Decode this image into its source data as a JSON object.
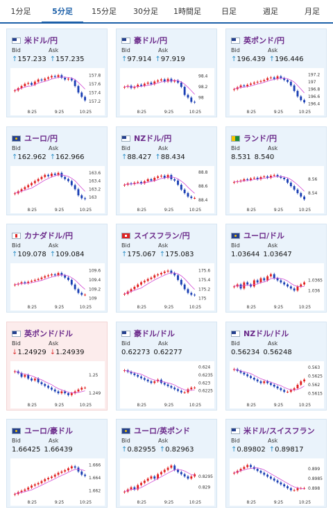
{
  "tabs": [
    {
      "label": "1分足",
      "active": false
    },
    {
      "label": "5分足",
      "active": true
    },
    {
      "label": "15分足",
      "active": false
    },
    {
      "label": "30分足",
      "active": false
    },
    {
      "label": "1時間足",
      "active": false
    },
    {
      "label": "日足",
      "active": false
    },
    {
      "label": "週足",
      "active": false
    },
    {
      "label": "月足",
      "active": false
    }
  ],
  "labels": {
    "bid": "Bid",
    "ask": "Ask"
  },
  "colors": {
    "up_candle": "#e02020",
    "down_candle": "#1a3fb4",
    "ma_line": "#d24ad4",
    "trend_line": "#2a8ec6",
    "link": "#6b2a8a"
  },
  "cards": [
    {
      "pair": "米ドル/円",
      "flag": "us-icon",
      "arrow": "up",
      "bid": "157.233",
      "ask": "157.235",
      "chart_data": {
        "type": "candlestick",
        "x_ticks": [
          "8:25",
          "9:25",
          "10:25"
        ],
        "y_ticks": [
          "157.8",
          "157.6",
          "157.4",
          "157.2"
        ],
        "ylim": [
          157.1,
          157.9
        ],
        "close": [
          157.45,
          157.5,
          157.55,
          157.6,
          157.62,
          157.58,
          157.65,
          157.7,
          157.68,
          157.72,
          157.75,
          157.78,
          157.76,
          157.8,
          157.74,
          157.7,
          157.72,
          157.68,
          157.55,
          157.4,
          157.3,
          157.22
        ]
      }
    },
    {
      "pair": "豪ドル/円",
      "flag": "au-icon",
      "arrow": "up",
      "bid": "97.914",
      "ask": "97.919",
      "chart_data": {
        "type": "candlestick",
        "x_ticks": [
          "8:25",
          "9:25",
          "10:25"
        ],
        "y_ticks": [
          "98.4",
          "98.2",
          "98"
        ],
        "ylim": [
          97.85,
          98.5
        ],
        "close": [
          98.2,
          98.22,
          98.18,
          98.2,
          98.24,
          98.22,
          98.26,
          98.28,
          98.25,
          98.3,
          98.32,
          98.34,
          98.3,
          98.35,
          98.3,
          98.32,
          98.28,
          98.2,
          98.05,
          98.0,
          97.92,
          97.91
        ]
      }
    },
    {
      "pair": "英ポンド/円",
      "flag": "gb-icon",
      "arrow": "up",
      "bid": "196.439",
      "ask": "196.446",
      "chart_data": {
        "type": "candlestick",
        "x_ticks": [
          "8:25",
          "9:25",
          "10:25"
        ],
        "y_ticks": [
          "197.2",
          "197",
          "196.8",
          "196.6",
          "196.4"
        ],
        "ylim": [
          196.35,
          197.3
        ],
        "close": [
          196.8,
          196.85,
          196.9,
          196.88,
          196.92,
          196.95,
          196.98,
          197.0,
          197.02,
          197.05,
          197.1,
          197.12,
          197.08,
          197.15,
          197.1,
          197.05,
          197.0,
          196.9,
          196.75,
          196.6,
          196.5,
          196.44
        ]
      }
    },
    {
      "pair": "ユーロ/円",
      "flag": "eu-icon",
      "arrow": "up",
      "bid": "162.962",
      "ask": "162.966",
      "chart_data": {
        "type": "candlestick",
        "x_ticks": [
          "8:25",
          "9:25",
          "10:25"
        ],
        "y_ticks": [
          "163.6",
          "163.4",
          "163.2",
          "163"
        ],
        "ylim": [
          162.85,
          163.7
        ],
        "close": [
          163.1,
          163.15,
          163.2,
          163.25,
          163.3,
          163.35,
          163.4,
          163.45,
          163.5,
          163.55,
          163.52,
          163.58,
          163.55,
          163.6,
          163.5,
          163.45,
          163.4,
          163.3,
          163.2,
          163.05,
          162.98,
          162.96
        ]
      }
    },
    {
      "pair": "NZドル/円",
      "flag": "nz-icon",
      "arrow": "up",
      "bid": "88.427",
      "ask": "88.434",
      "chart_data": {
        "type": "candlestick",
        "x_ticks": [
          "8:25",
          "9:25",
          "10:25"
        ],
        "y_ticks": [
          "88.8",
          "88.6",
          "88.4"
        ],
        "ylim": [
          88.35,
          88.85
        ],
        "close": [
          88.62,
          88.64,
          88.63,
          88.65,
          88.66,
          88.64,
          88.67,
          88.7,
          88.68,
          88.72,
          88.74,
          88.75,
          88.72,
          88.76,
          88.7,
          88.68,
          88.62,
          88.55,
          88.5,
          88.45,
          88.43,
          88.43
        ]
      }
    },
    {
      "pair": "ランド/円",
      "flag": "za-icon",
      "arrow": "none",
      "bid": "8.531",
      "ask": "8.540",
      "chart_data": {
        "type": "candlestick",
        "x_ticks": [
          "8:25",
          "9:25",
          "10:25"
        ],
        "y_ticks": [
          "8.56",
          "8.54"
        ],
        "ylim": [
          8.525,
          8.575
        ],
        "close": [
          8.556,
          8.557,
          8.558,
          8.56,
          8.559,
          8.561,
          8.562,
          8.56,
          8.563,
          8.564,
          8.562,
          8.565,
          8.566,
          8.564,
          8.562,
          8.56,
          8.555,
          8.55,
          8.545,
          8.54,
          8.535,
          8.531
        ]
      }
    },
    {
      "pair": "カナダドル/円",
      "flag": "ca-icon",
      "arrow": "up",
      "bid": "109.078",
      "ask": "109.084",
      "chart_data": {
        "type": "candlestick",
        "x_ticks": [
          "8:25",
          "9:25",
          "10:25"
        ],
        "y_ticks": [
          "109.6",
          "109.4",
          "109.2",
          "109"
        ],
        "ylim": [
          108.95,
          109.7
        ],
        "close": [
          109.3,
          109.32,
          109.35,
          109.33,
          109.36,
          109.38,
          109.4,
          109.42,
          109.45,
          109.48,
          109.5,
          109.52,
          109.5,
          109.55,
          109.5,
          109.45,
          109.4,
          109.3,
          109.2,
          109.12,
          109.08,
          109.08
        ]
      }
    },
    {
      "pair": "スイスフラン/円",
      "flag": "ch-icon",
      "arrow": "up",
      "bid": "175.067",
      "ask": "175.083",
      "chart_data": {
        "type": "candlestick",
        "x_ticks": [
          "8:25",
          "9:25",
          "10:25"
        ],
        "y_ticks": [
          "175.6",
          "175.4",
          "175.2",
          "175"
        ],
        "ylim": [
          174.95,
          175.7
        ],
        "close": [
          175.1,
          175.15,
          175.2,
          175.25,
          175.3,
          175.35,
          175.38,
          175.42,
          175.45,
          175.5,
          175.52,
          175.55,
          175.58,
          175.6,
          175.55,
          175.5,
          175.4,
          175.3,
          175.2,
          175.12,
          175.08,
          175.07
        ]
      }
    },
    {
      "pair": "ユーロ/ドル",
      "flag": "eu-us-icon",
      "arrow": "none",
      "bid": "1.03644",
      "ask": "1.03647",
      "chart_data": {
        "type": "candlestick",
        "x_ticks": [
          "8:25",
          "9:25",
          "10:25"
        ],
        "y_ticks": [
          "1.0365",
          "1.036"
        ],
        "ylim": [
          1.0355,
          1.0372
        ],
        "close": [
          1.0362,
          1.0363,
          1.0361,
          1.0364,
          1.0363,
          1.0362,
          1.0365,
          1.0364,
          1.0366,
          1.0365,
          1.0367,
          1.0368,
          1.0366,
          1.0365,
          1.0364,
          1.0363,
          1.0362,
          1.0361,
          1.036,
          1.0362,
          1.0363,
          1.0364
        ]
      }
    },
    {
      "pair": "英ポンド/ドル",
      "flag": "gb-us-icon",
      "arrow": "down",
      "bid": "1.24929",
      "ask": "1.24939",
      "chart_data": {
        "type": "candlestick",
        "x_ticks": [
          "8:25",
          "9:25",
          "10:25"
        ],
        "y_ticks": [
          "1.25",
          "1.249"
        ],
        "ylim": [
          1.2487,
          1.2506
        ],
        "close": [
          1.2502,
          1.2501,
          1.2499,
          1.25,
          1.2498,
          1.2497,
          1.2498,
          1.2496,
          1.2495,
          1.2494,
          1.2493,
          1.2492,
          1.2491,
          1.249,
          1.2491,
          1.249,
          1.2489,
          1.249,
          1.2491,
          1.2492,
          1.2493,
          1.2493
        ]
      }
    },
    {
      "pair": "豪ドル/ドル",
      "flag": "au-us-icon",
      "arrow": "none",
      "bid": "0.62273",
      "ask": "0.62277",
      "chart_data": {
        "type": "candlestick",
        "x_ticks": [
          "8:25",
          "9:25",
          "10:25"
        ],
        "y_ticks": [
          "0.624",
          "0.6235",
          "0.623",
          "0.6225"
        ],
        "ylim": [
          0.622,
          0.6242
        ],
        "close": [
          0.6238,
          0.6237,
          0.6236,
          0.6235,
          0.6234,
          0.6233,
          0.6232,
          0.6231,
          0.623,
          0.6231,
          0.6232,
          0.623,
          0.6229,
          0.6228,
          0.6227,
          0.6226,
          0.6225,
          0.6224,
          0.6224,
          0.6226,
          0.6227,
          0.6227
        ]
      }
    },
    {
      "pair": "NZドル/ドル",
      "flag": "nz-us-icon",
      "arrow": "none",
      "bid": "0.56234",
      "ask": "0.56248",
      "chart_data": {
        "type": "candlestick",
        "x_ticks": [
          "8:25",
          "9:25",
          "10:25"
        ],
        "y_ticks": [
          "0.563",
          "0.5625",
          "0.562",
          "0.5615"
        ],
        "ylim": [
          0.5612,
          0.5632
        ],
        "close": [
          0.5629,
          0.5628,
          0.5627,
          0.5626,
          0.5625,
          0.5624,
          0.5623,
          0.5622,
          0.5621,
          0.5622,
          0.5621,
          0.562,
          0.5619,
          0.5618,
          0.5617,
          0.5616,
          0.5616,
          0.5617,
          0.5618,
          0.562,
          0.5622,
          0.5623
        ]
      }
    },
    {
      "pair": "ユーロ/豪ドル",
      "flag": "eu-au-icon",
      "arrow": "none",
      "bid": "1.66425",
      "ask": "1.66439",
      "chart_data": {
        "type": "candlestick",
        "x_ticks": [
          "8:25",
          "9:25",
          "10:25"
        ],
        "y_ticks": [
          "1.666",
          "1.664",
          "1.662"
        ],
        "ylim": [
          1.6612,
          1.6666
        ],
        "close": [
          1.6615,
          1.6618,
          1.662,
          1.6622,
          1.6625,
          1.6628,
          1.663,
          1.6632,
          1.6635,
          1.6638,
          1.664,
          1.6642,
          1.6645,
          1.6648,
          1.665,
          1.6652,
          1.6655,
          1.6658,
          1.6656,
          1.665,
          1.6645,
          1.6643
        ]
      }
    },
    {
      "pair": "ユーロ/英ポンド",
      "flag": "eu-gb-icon",
      "arrow": "up",
      "bid": "0.82955",
      "ask": "0.82963",
      "chart_data": {
        "type": "candlestick",
        "x_ticks": [
          "8:25",
          "9:25",
          "10:25"
        ],
        "y_ticks": [
          "0.8295",
          "0.829"
        ],
        "ylim": [
          0.8286,
          0.8302
        ],
        "close": [
          0.8288,
          0.8289,
          0.829,
          0.8289,
          0.8291,
          0.8292,
          0.8293,
          0.8294,
          0.8295,
          0.8294,
          0.8296,
          0.8297,
          0.8298,
          0.8299,
          0.83,
          0.8298,
          0.8297,
          0.8296,
          0.8295,
          0.8294,
          0.8295,
          0.8296
        ]
      }
    },
    {
      "pair": "米ドル/スイスフラン",
      "flag": "us-ch-icon",
      "arrow": "up",
      "bid": "0.89802",
      "ask": "0.89817",
      "chart_data": {
        "type": "candlestick",
        "x_ticks": [
          "8:25",
          "9:25",
          "10:25"
        ],
        "y_ticks": [
          "0.899",
          "0.8985",
          "0.898"
        ],
        "ylim": [
          0.8976,
          0.8994
        ],
        "close": [
          0.8988,
          0.8989,
          0.899,
          0.8991,
          0.8992,
          0.8991,
          0.899,
          0.8989,
          0.8988,
          0.8987,
          0.8986,
          0.8985,
          0.8984,
          0.8983,
          0.8982,
          0.8981,
          0.898,
          0.8979,
          0.8979,
          0.898,
          0.898,
          0.898
        ]
      }
    }
  ]
}
